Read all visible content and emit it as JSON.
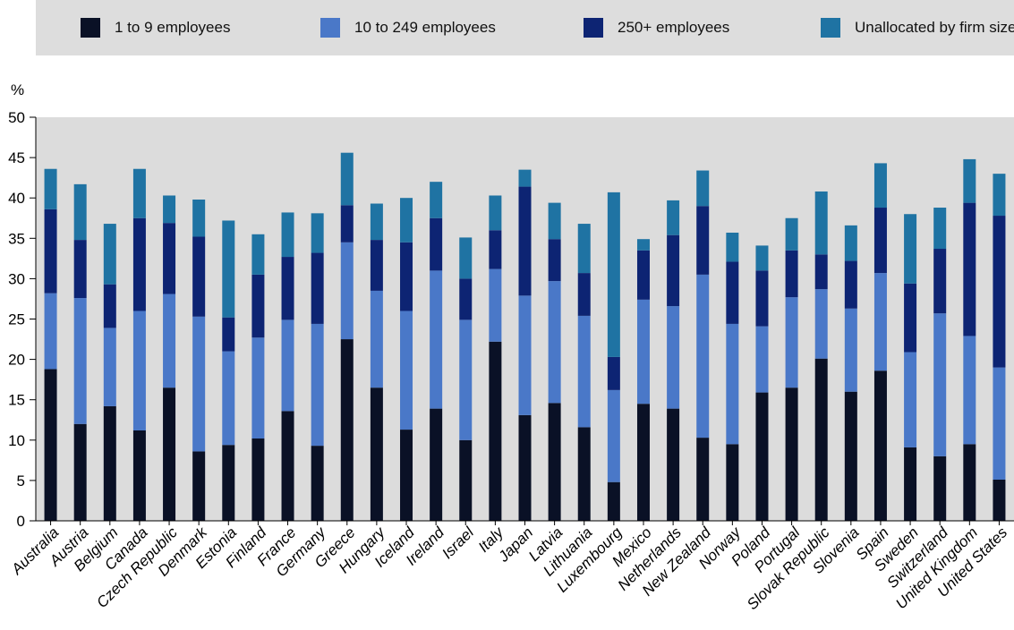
{
  "legend": {
    "items": [
      {
        "label": "1 to 9 employees",
        "color": "#0a1126"
      },
      {
        "label": "10 to 249 employees",
        "color": "#4a78c8"
      },
      {
        "label": "250+ employees",
        "color": "#0d2473"
      },
      {
        "label": "Unallocated by firm size",
        "color": "#1f73a3"
      }
    ]
  },
  "chart_data": {
    "type": "bar",
    "stacked": true,
    "ylabel": "%",
    "ylim": [
      0,
      50
    ],
    "yticks": [
      0,
      5,
      10,
      15,
      20,
      25,
      30,
      35,
      40,
      45,
      50
    ],
    "grid": false,
    "background": "#dcdcdc",
    "legend_position": "top",
    "categories": [
      "Australia",
      "Austria",
      "Belgium",
      "Canada",
      "Czech Republic",
      "Denmark",
      "Estonia",
      "Finland",
      "France",
      "Germany",
      "Greece",
      "Hungary",
      "Iceland",
      "Ireland",
      "Israel",
      "Italy",
      "Japan",
      "Latvia",
      "Lithuania",
      "Luxembourg",
      "Mexico",
      "Netherlands",
      "New Zealand",
      "Norway",
      "Poland",
      "Portugal",
      "Slovak Republic",
      "Slovenia",
      "Spain",
      "Sweden",
      "Switzerland",
      "United Kingdom",
      "United States"
    ],
    "series": [
      {
        "name": "1 to 9 employees",
        "color": "#0a1126",
        "values": [
          18.8,
          12.0,
          14.2,
          11.2,
          16.5,
          8.6,
          9.4,
          10.2,
          13.6,
          9.3,
          22.5,
          16.5,
          11.3,
          13.9,
          10.0,
          22.2,
          13.1,
          14.6,
          11.6,
          4.8,
          14.5,
          13.9,
          10.3,
          9.5,
          15.9,
          16.5,
          20.1,
          16.0,
          18.6,
          9.1,
          8.0,
          9.5,
          5.1
        ]
      },
      {
        "name": "10 to 249 employees",
        "color": "#4a78c8",
        "values": [
          9.4,
          15.6,
          9.7,
          14.8,
          11.6,
          16.7,
          11.6,
          12.5,
          11.3,
          15.1,
          12.0,
          12.0,
          14.7,
          17.1,
          14.9,
          9.0,
          14.8,
          15.1,
          13.8,
          11.4,
          12.9,
          12.7,
          20.2,
          14.9,
          8.2,
          11.2,
          8.6,
          10.3,
          12.1,
          11.8,
          17.7,
          13.4,
          13.9
        ]
      },
      {
        "name": "250+ employees",
        "color": "#0d2473",
        "values": [
          10.4,
          7.2,
          5.4,
          11.5,
          8.8,
          9.9,
          4.2,
          7.8,
          7.8,
          8.8,
          4.6,
          6.3,
          8.5,
          6.5,
          5.1,
          4.8,
          13.5,
          5.2,
          5.3,
          4.1,
          6.1,
          8.8,
          8.5,
          7.7,
          6.9,
          5.8,
          4.3,
          5.9,
          8.1,
          8.5,
          8.0,
          16.5,
          18.8
        ]
      },
      {
        "name": "Unallocated by firm size",
        "color": "#1f73a3",
        "values": [
          5.0,
          6.9,
          7.5,
          6.1,
          3.4,
          4.6,
          12.0,
          5.0,
          5.5,
          4.9,
          6.5,
          4.5,
          5.5,
          4.5,
          5.1,
          4.3,
          2.1,
          4.5,
          6.1,
          20.4,
          1.4,
          4.3,
          4.4,
          3.6,
          3.1,
          4.0,
          7.8,
          4.4,
          5.5,
          8.6,
          5.1,
          5.4,
          5.2
        ]
      }
    ]
  }
}
